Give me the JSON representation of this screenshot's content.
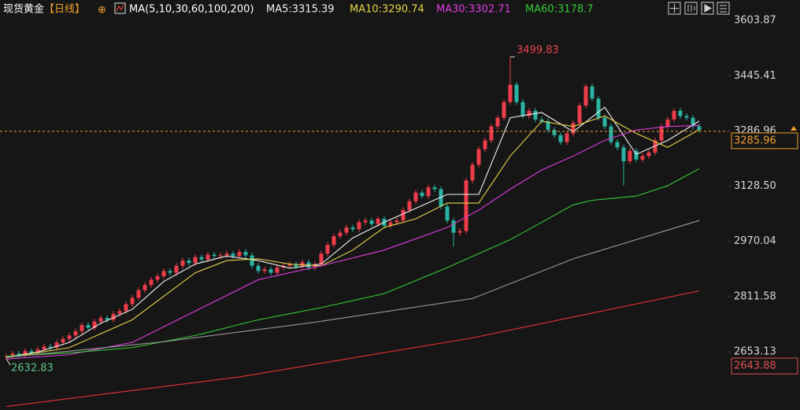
{
  "chart_data": {
    "type": "candlestick",
    "title": "现货黄金",
    "period": "【日线】",
    "indicator": "MA(5,10,30,60,100,200)",
    "up_color": "#ee3d4a",
    "down_color": "#2bb3a3",
    "ylim": [
      2486,
      3663
    ],
    "yticks": [
      3603.87,
      3445.41,
      3286.96,
      {
        "value": 3128.5,
        "label": "3128.50"
      },
      2970.04,
      2811.58,
      2653.13
    ],
    "open": [
      2638,
      2640,
      2648,
      2645,
      2655,
      2650,
      2660,
      2668,
      2665,
      2680,
      2690,
      2700,
      2712,
      2730,
      2722,
      2740,
      2750,
      2745,
      2762,
      2770,
      2790,
      2808,
      2830,
      2845,
      2860,
      2870,
      2885,
      2880,
      2900,
      2915,
      2908,
      2925,
      2918,
      2932,
      2928,
      2930,
      2935,
      2928,
      2940,
      2930,
      2900,
      2885,
      2890,
      2880,
      2895,
      2900,
      2905,
      2898,
      2910,
      2895,
      2905,
      2935,
      2960,
      2985,
      2995,
      3010,
      3005,
      3025,
      3030,
      3020,
      3035,
      3015,
      3025,
      3030,
      3060,
      3085,
      3110,
      3100,
      3125,
      3120,
      3070,
      3030,
      2995,
      3000,
      3145,
      3190,
      3235,
      3260,
      3300,
      3325,
      3370,
      3420,
      3370,
      3330,
      3345,
      3320,
      3315,
      3290,
      3275,
      3255,
      3280,
      3310,
      3360,
      3415,
      3380,
      3325,
      3300,
      3255,
      3240,
      3200,
      3230,
      3205,
      3215,
      3225,
      3260,
      3300,
      3320,
      3345,
      3330,
      3325,
      3300
    ],
    "high": [
      2648,
      2656,
      2656,
      2663,
      2663,
      2668,
      2676,
      2676,
      2688,
      2698,
      2708,
      2720,
      2738,
      2738,
      2748,
      2758,
      2758,
      2770,
      2778,
      2798,
      2816,
      2838,
      2853,
      2868,
      2878,
      2893,
      2893,
      2908,
      2923,
      2923,
      2933,
      2933,
      2940,
      2940,
      2938,
      2943,
      2943,
      2948,
      2948,
      2938,
      2908,
      2898,
      2898,
      2903,
      2908,
      2913,
      2913,
      2918,
      2918,
      2913,
      2943,
      2968,
      2993,
      3003,
      3018,
      3018,
      3033,
      3038,
      3038,
      3043,
      3043,
      3033,
      3038,
      3068,
      3093,
      3118,
      3118,
      3133,
      3133,
      3128,
      3078,
      3038,
      3008,
      3153,
      3198,
      3243,
      3268,
      3308,
      3333,
      3378,
      3499.83,
      3428,
      3378,
      3353,
      3353,
      3328,
      3323,
      3298,
      3283,
      3288,
      3318,
      3368,
      3423,
      3423,
      3388,
      3333,
      3308,
      3263,
      3248,
      3238,
      3238,
      3223,
      3233,
      3268,
      3308,
      3328,
      3353,
      3353,
      3338,
      3333,
      3308
    ],
    "low": [
      2632.83,
      2634,
      2637,
      2637,
      2642,
      2642,
      2652,
      2657,
      2657,
      2672,
      2682,
      2692,
      2704,
      2714,
      2714,
      2732,
      2737,
      2737,
      2754,
      2762,
      2782,
      2800,
      2822,
      2837,
      2852,
      2862,
      2872,
      2872,
      2892,
      2900,
      2900,
      2910,
      2910,
      2920,
      2920,
      2922,
      2920,
      2920,
      2922,
      2892,
      2877,
      2877,
      2872,
      2872,
      2887,
      2892,
      2890,
      2890,
      2887,
      2887,
      2897,
      2927,
      2952,
      2977,
      2987,
      2997,
      2997,
      3017,
      3012,
      3012,
      3007,
      3007,
      3017,
      3022,
      3052,
      3077,
      3092,
      3092,
      3112,
      3062,
      3022,
      2955,
      2987,
      2992,
      3137,
      3182,
      3227,
      3252,
      3292,
      3317,
      3362,
      3362,
      3322,
      3322,
      3312,
      3307,
      3282,
      3267,
      3247,
      3247,
      3272,
      3302,
      3352,
      3372,
      3317,
      3292,
      3247,
      3232,
      3130,
      3192,
      3197,
      3197,
      3207,
      3217,
      3252,
      3292,
      3312,
      3322,
      3317,
      3292,
      3282
    ],
    "close": [
      2640,
      2648,
      2645,
      2655,
      2650,
      2660,
      2668,
      2665,
      2680,
      2690,
      2700,
      2712,
      2730,
      2722,
      2740,
      2750,
      2745,
      2762,
      2770,
      2790,
      2808,
      2830,
      2845,
      2860,
      2870,
      2885,
      2880,
      2900,
      2915,
      2908,
      2925,
      2918,
      2932,
      2928,
      2930,
      2935,
      2928,
      2940,
      2930,
      2900,
      2885,
      2890,
      2880,
      2895,
      2900,
      2905,
      2898,
      2910,
      2895,
      2905,
      2935,
      2960,
      2985,
      2995,
      3010,
      3005,
      3025,
      3030,
      3020,
      3035,
      3015,
      3025,
      3030,
      3060,
      3085,
      3110,
      3100,
      3125,
      3120,
      3070,
      3030,
      2995,
      3000,
      3145,
      3190,
      3235,
      3260,
      3300,
      3325,
      3370,
      3420,
      3370,
      3330,
      3345,
      3320,
      3315,
      3290,
      3275,
      3255,
      3280,
      3310,
      3360,
      3415,
      3380,
      3325,
      3300,
      3255,
      3240,
      3200,
      3230,
      3205,
      3215,
      3225,
      3260,
      3300,
      3320,
      3345,
      3330,
      3325,
      3300,
      3290
    ],
    "series": [
      {
        "name": "MA5:3315.39",
        "color": "#f2f2f2",
        "x": [
          0,
          5,
          10,
          15,
          20,
          25,
          30,
          35,
          40,
          45,
          50,
          55,
          60,
          65,
          70,
          75,
          80,
          85,
          90,
          95,
          100,
          105,
          110
        ],
        "values": [
          2638,
          2652,
          2680,
          2735,
          2775,
          2855,
          2905,
          2928,
          2915,
          2893,
          2905,
          2980,
          3025,
          3065,
          3105,
          3105,
          3325,
          3340,
          3285,
          3355,
          3220,
          3260,
          3315.39
        ]
      },
      {
        "name": "MA10:3290.74",
        "color": "#e6d34a",
        "x": [
          0,
          10,
          20,
          30,
          35,
          40,
          45,
          50,
          55,
          60,
          65,
          70,
          75,
          80,
          85,
          90,
          95,
          100,
          105,
          110
        ],
        "values": [
          2636,
          2665,
          2745,
          2880,
          2915,
          2920,
          2905,
          2900,
          2945,
          3010,
          3035,
          3080,
          3080,
          3215,
          3315,
          3300,
          3330,
          3280,
          3240,
          3290.74
        ]
      },
      {
        "name": "MA30:3302.71",
        "color": "#e03ce0",
        "x": [
          0,
          10,
          20,
          30,
          40,
          50,
          60,
          70,
          75,
          80,
          85,
          90,
          95,
          100,
          105,
          110
        ],
        "values": [
          2632,
          2645,
          2680,
          2770,
          2860,
          2900,
          2945,
          3010,
          3060,
          3120,
          3175,
          3215,
          3260,
          3290,
          3300,
          3302.71
        ]
      },
      {
        "name": "MA60:3178.7",
        "color": "#36c936",
        "x": [
          0,
          10,
          20,
          30,
          40,
          50,
          60,
          70,
          75,
          80,
          90,
          93,
          100,
          105,
          110
        ],
        "values": [
          2640,
          2650,
          2665,
          2700,
          2745,
          2780,
          2820,
          2895,
          2935,
          2975,
          3075,
          3088,
          3100,
          3130,
          3178.7
        ]
      },
      {
        "color": "#9a9a9a",
        "x": [
          0,
          25,
          49,
          74,
          90,
          110
        ],
        "values": [
          2637,
          2682,
          2738,
          2806,
          2920,
          3030
        ]
      },
      {
        "color": "#e8322f",
        "x": [
          0,
          37,
          74,
          110
        ],
        "values": [
          2496,
          2581,
          2693,
          2828
        ]
      }
    ],
    "price_tags": [
      {
        "value": 3285.96,
        "color": "#f0a030"
      },
      {
        "value": 2643.88,
        "color": "#e05050"
      }
    ]
  }
}
